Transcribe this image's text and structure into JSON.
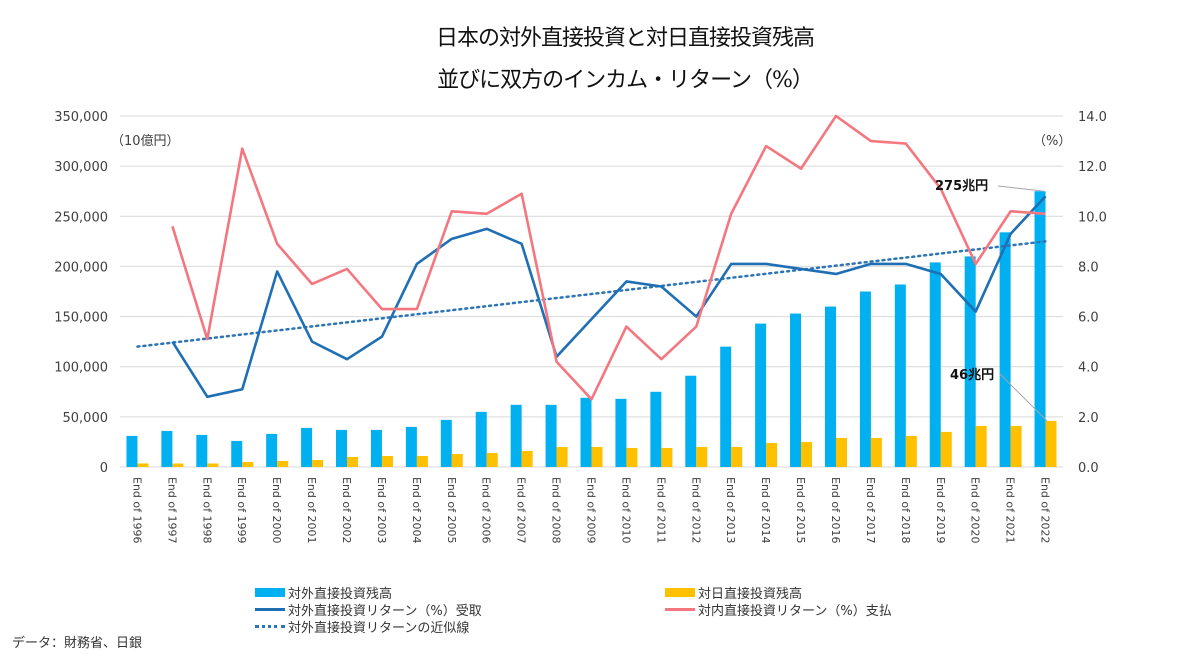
{
  "title_line1": "日本の対外直接投資と対日直接投資残高",
  "title_line2": "並びに双方のインカム・リターン（%）",
  "source_note": "データ：財務省、日銀",
  "chart_data": {
    "type": "bar",
    "title": "日本の対外直接投資と対日直接投資残高 並びに双方のインカム・リターン（%）",
    "categories": [
      "End of 1996",
      "End of 1997",
      "End of 1998",
      "End of 1999",
      "End of 2000",
      "End of 2001",
      "End of 2002",
      "End of 2003",
      "End of 2004",
      "End of 2005",
      "End of 2006",
      "End of 2007",
      "End of 2008",
      "End of 2009",
      "End of 2010",
      "End of 2011",
      "End of 2012",
      "End of 2013",
      "End of 2014",
      "End of 2015",
      "End of 2016",
      "End of 2017",
      "End of 2018",
      "End of 2019",
      "End of 2020",
      "End of 2021",
      "End of 2022"
    ],
    "left_axis": {
      "label": "（10億円）",
      "range": [
        0,
        350000
      ],
      "ticks": [
        "0",
        "50,000",
        "100,000",
        "150,000",
        "200,000",
        "250,000",
        "300,000",
        "350,000"
      ],
      "tick_values": [
        0,
        50000,
        100000,
        150000,
        200000,
        250000,
        300000,
        350000
      ]
    },
    "right_axis": {
      "label": "（%）",
      "range": [
        0,
        14
      ],
      "ticks": [
        "0.0",
        "2.0",
        "4.0",
        "6.0",
        "8.0",
        "10.0",
        "12.0",
        "14.0"
      ],
      "tick_values": [
        0,
        2,
        4,
        6,
        8,
        10,
        12,
        14
      ]
    },
    "grid": true,
    "legend_position": "bottom",
    "series": [
      {
        "name": "対外直接投資残高",
        "kind": "bar",
        "axis": "left",
        "color": "#00B0F0",
        "values": [
          31000,
          36000,
          32000,
          26000,
          33000,
          39000,
          37000,
          37000,
          40000,
          47000,
          55000,
          62000,
          62000,
          69000,
          68000,
          75000,
          91000,
          120000,
          143000,
          153000,
          160000,
          175000,
          182000,
          204000,
          210000,
          234000,
          275000
        ]
      },
      {
        "name": "対日直接投資残高",
        "kind": "bar",
        "axis": "left",
        "color": "#FFC000",
        "values": [
          3500,
          3500,
          3500,
          5000,
          6000,
          7000,
          10000,
          11000,
          11000,
          13000,
          14000,
          16000,
          20000,
          20000,
          19000,
          19000,
          20000,
          20000,
          24000,
          25000,
          29000,
          29000,
          31000,
          35000,
          41000,
          41000,
          46000
        ]
      },
      {
        "name": "対外直接投資リターン（%）受取",
        "kind": "line",
        "axis": "right",
        "color": "#1F6FB5",
        "values": [
          null,
          5.0,
          2.8,
          3.1,
          7.8,
          5.0,
          4.3,
          5.2,
          8.1,
          9.1,
          9.5,
          8.9,
          4.4,
          5.9,
          7.4,
          7.2,
          6.0,
          8.1,
          8.1,
          7.9,
          7.7,
          8.1,
          8.1,
          7.7,
          6.2,
          9.3,
          10.8
        ]
      },
      {
        "name": "対内直接投資リターン（%）支払",
        "kind": "line",
        "axis": "right",
        "color": "#F4777F",
        "values": [
          null,
          9.6,
          5.1,
          12.7,
          8.9,
          7.3,
          7.9,
          6.3,
          6.3,
          10.2,
          10.1,
          10.9,
          4.2,
          2.7,
          5.6,
          4.3,
          5.6,
          10.1,
          12.8,
          11.9,
          14.0,
          13.0,
          12.9,
          11.1,
          8.1,
          10.2,
          10.1
        ]
      },
      {
        "name": "対外直接投資リターンの近似線",
        "kind": "trendline",
        "axis": "right",
        "color": "#2E75B6",
        "start_value": 4.8,
        "end_value": 9.0
      }
    ],
    "annotations": [
      {
        "text": "275兆円",
        "target": "対外直接投資残高 End of 2022"
      },
      {
        "text": "46兆円",
        "target": "対日直接投資残高 End of 2022"
      }
    ]
  },
  "legend": [
    {
      "label": "対外直接投資残高",
      "swatch": "bar-blue"
    },
    {
      "label": "対日直接投資残高",
      "swatch": "bar-yellow"
    },
    {
      "label": "対外直接投資リターン（%）受取",
      "swatch": "line-blue"
    },
    {
      "label": "対内直接投資リターン（%）支払",
      "swatch": "line-pink"
    },
    {
      "label": "対外直接投資リターンの近似線",
      "swatch": "dotted-blue"
    }
  ]
}
